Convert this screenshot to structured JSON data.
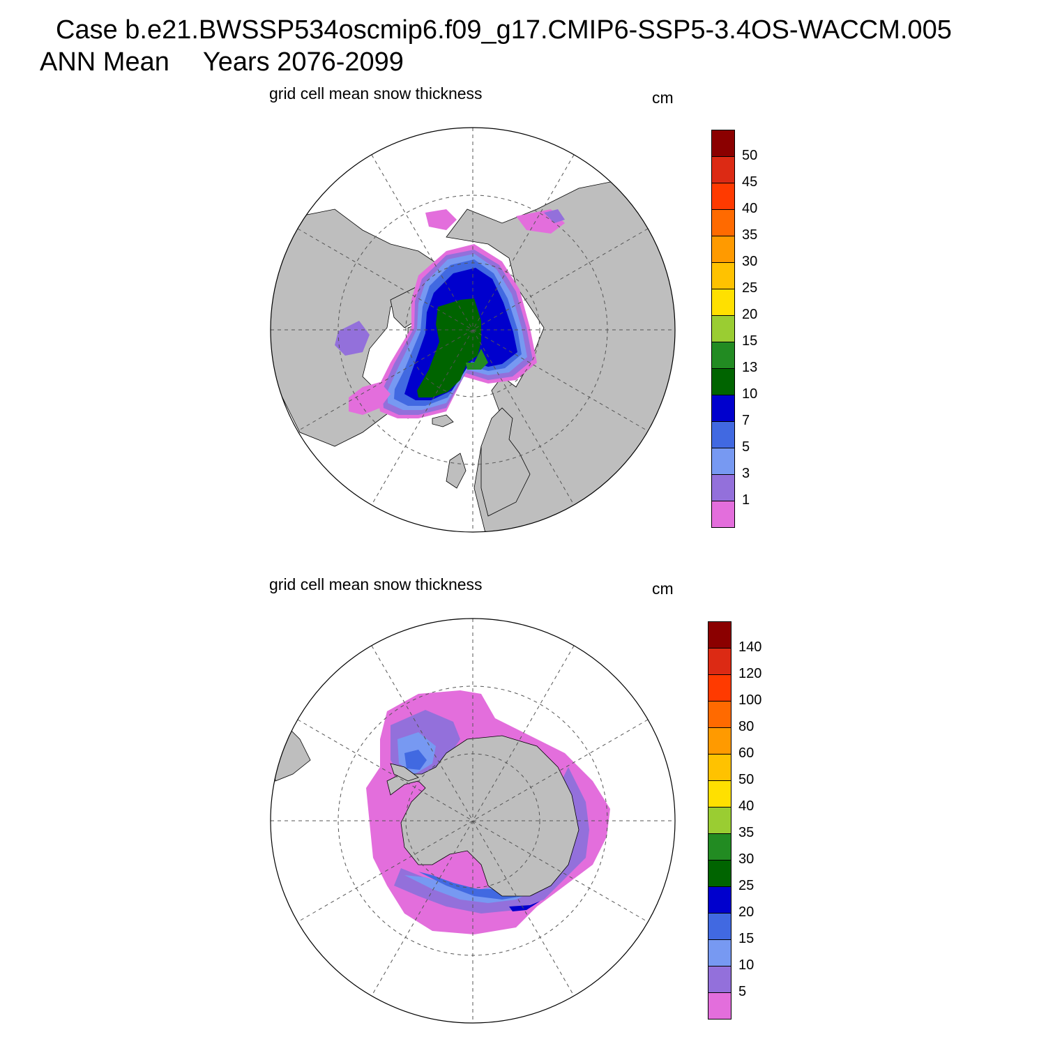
{
  "header": {
    "case_line": "Case b.e21.BWSSP534oscmip6.f09_g17.CMIP6-SSP5-3.4OS-WACCM.005",
    "season": "ANN Mean",
    "years": "Years 2076-2099"
  },
  "colors": {
    "land": "#bebebe",
    "levels": [
      "#e36edc",
      "#9370db",
      "#7799f2",
      "#4169e1",
      "#0000cd",
      "#006400",
      "#228b22",
      "#9acd32",
      "#ffe000",
      "#ffc200",
      "#ff9a00",
      "#ff6a00",
      "#ff3a00",
      "#dc2a14",
      "#8b0000"
    ]
  },
  "panels": [
    {
      "id": "nh",
      "title": "grid cell mean snow thickness",
      "units": "cm",
      "colorbar_labels": [
        "1",
        "3",
        "5",
        "7",
        "10",
        "13",
        "15",
        "20",
        "25",
        "30",
        "35",
        "40",
        "45",
        "50"
      ]
    },
    {
      "id": "sh",
      "title": "grid cell mean snow thickness",
      "units": "cm",
      "colorbar_labels": [
        "5",
        "10",
        "15",
        "20",
        "25",
        "30",
        "35",
        "40",
        "50",
        "60",
        "80",
        "100",
        "120",
        "140"
      ]
    }
  ]
}
